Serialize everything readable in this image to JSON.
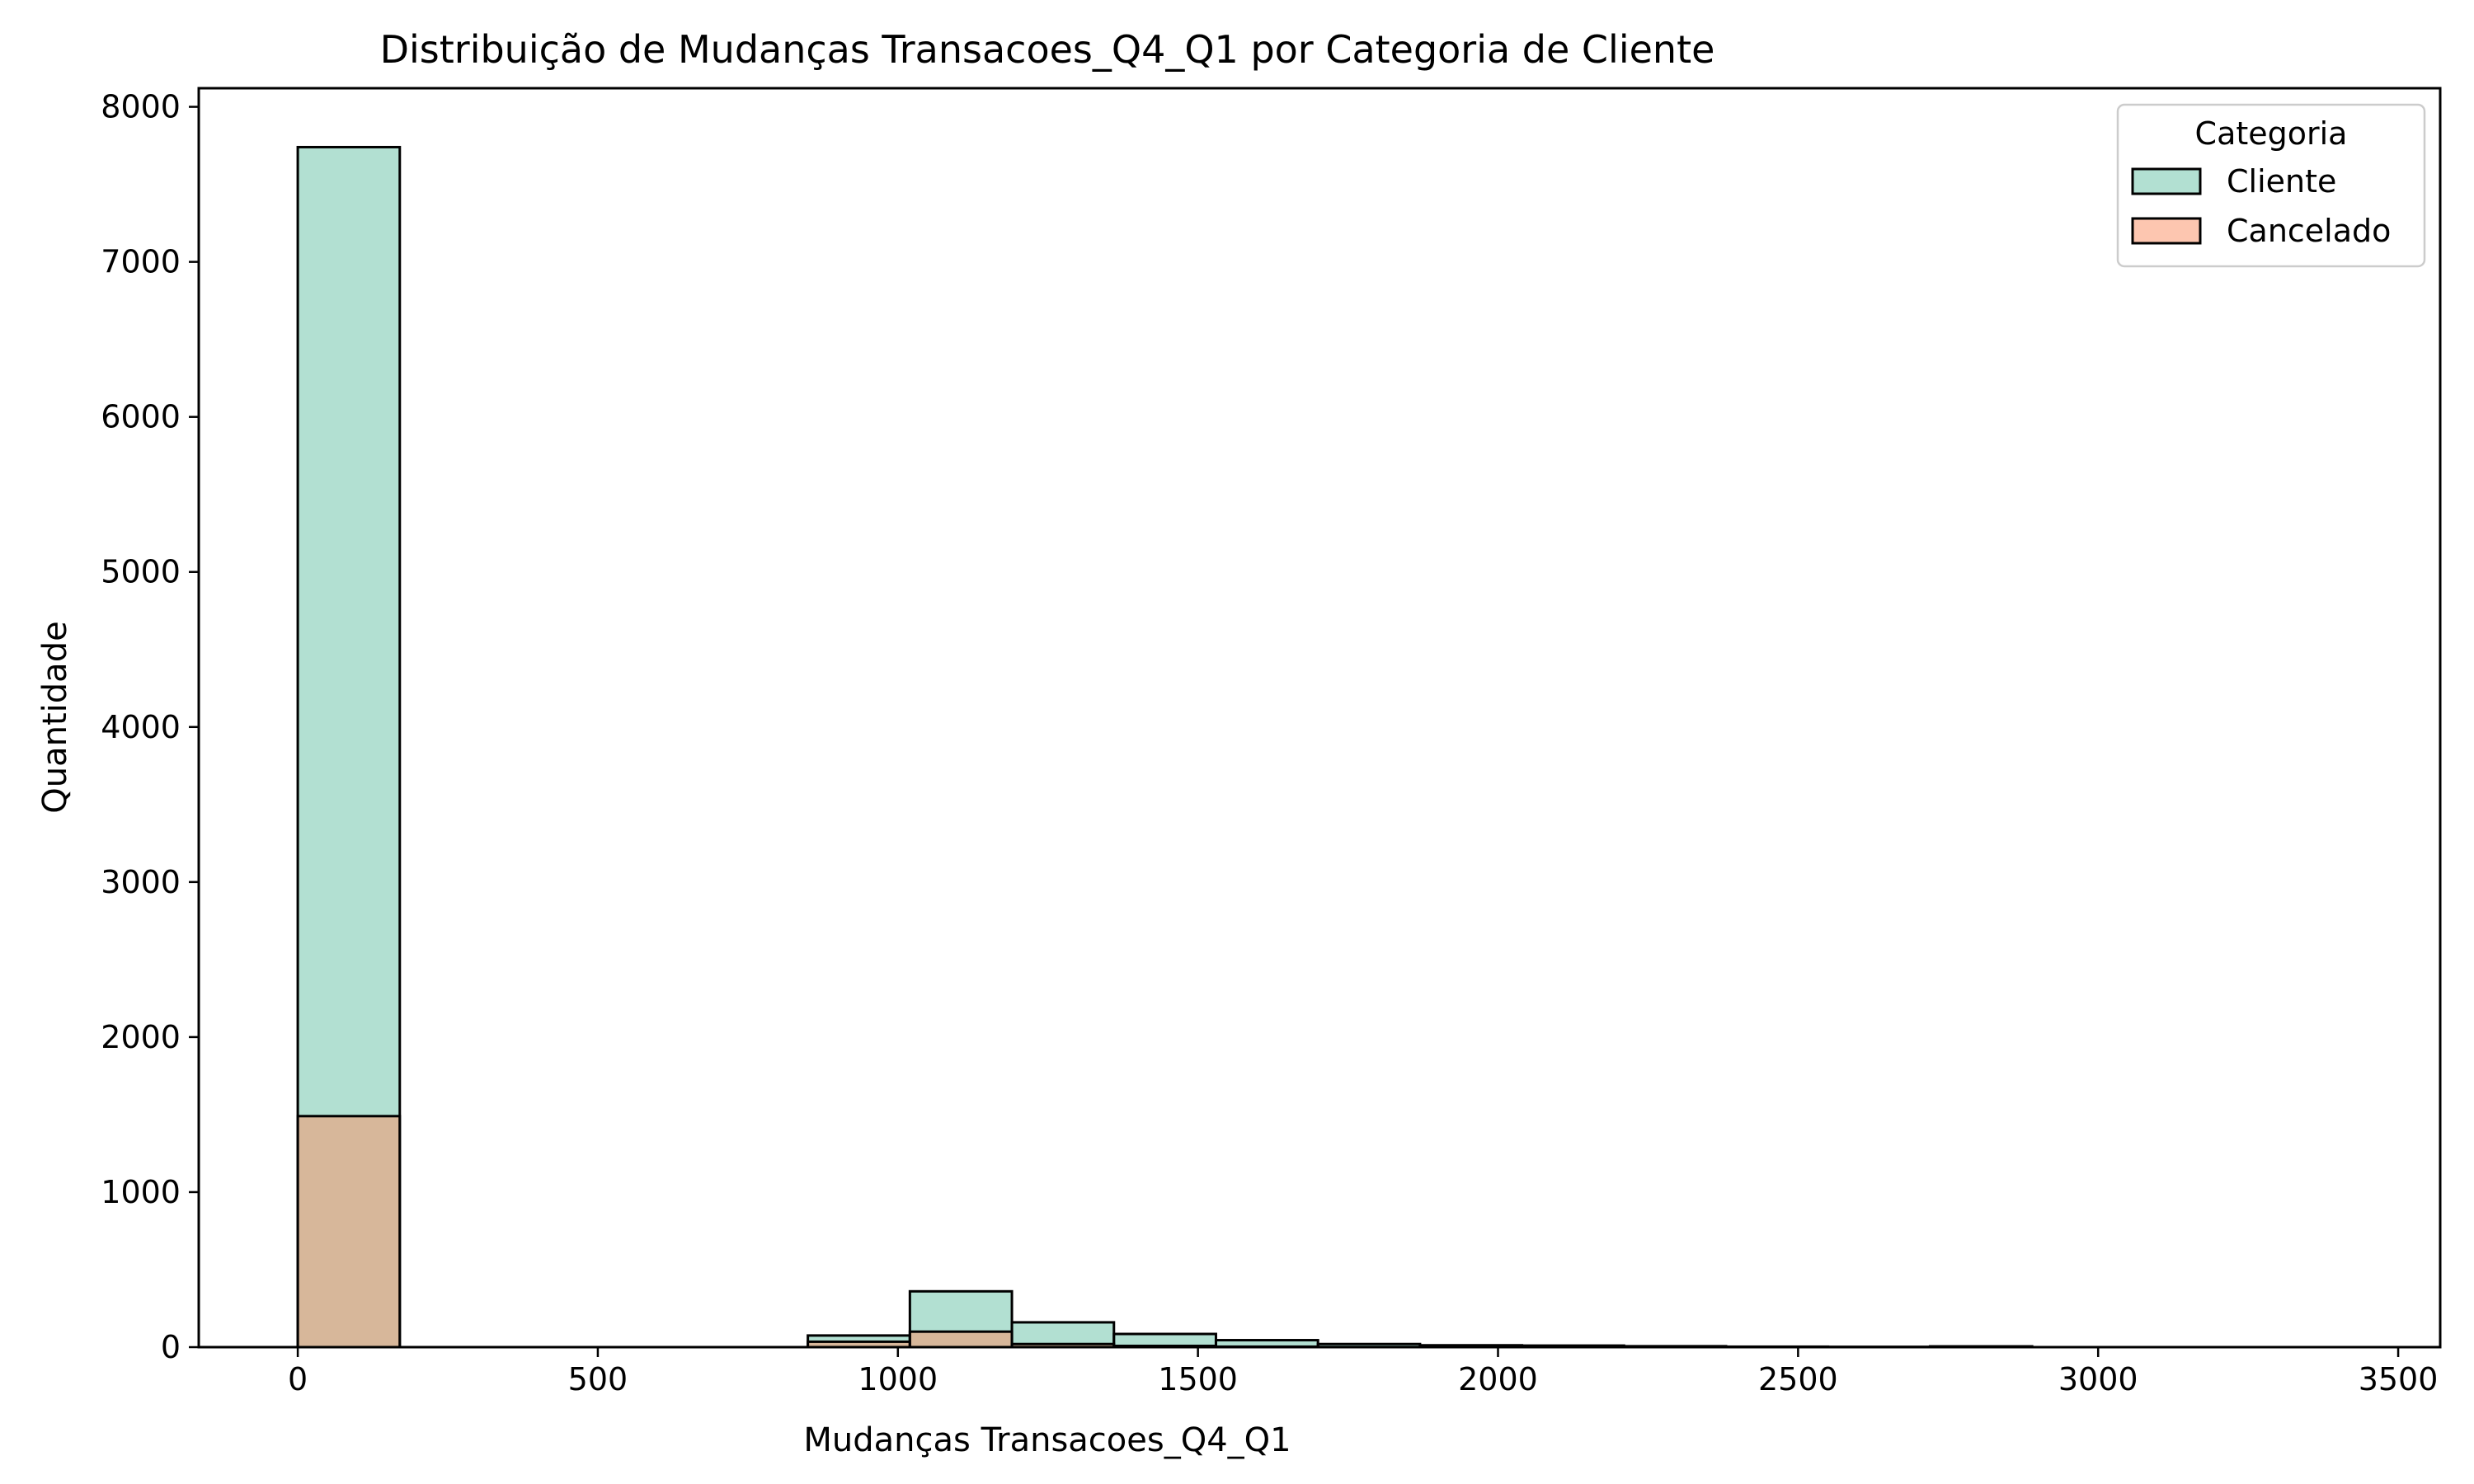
{
  "chart_data": {
    "type": "histogram",
    "title": "Distribuição de Mudanças Transacoes_Q4_Q1 por Categoria de Cliente",
    "xlabel": "Mudanças Transacoes_Q4_Q1",
    "ylabel": "Quantidade",
    "xlim": [
      -165,
      3570
    ],
    "ylim": [
      0,
      8120
    ],
    "xticks": [
      0,
      500,
      1000,
      1500,
      2000,
      2500,
      3000,
      3500
    ],
    "yticks": [
      0,
      1000,
      2000,
      3000,
      4000,
      5000,
      6000,
      7000,
      8000
    ],
    "bin_edges": [
      0,
      170,
      340,
      510,
      680,
      850,
      1020,
      1190,
      1360,
      1530,
      1700,
      1870,
      2040,
      2210,
      2380,
      2550,
      2720,
      2890,
      3060,
      3230,
      3400
    ],
    "grid": false,
    "legend": {
      "title": "Categoria",
      "position": "top-right"
    },
    "series": [
      {
        "name": "Cliente",
        "color": "#66c2a5",
        "values": [
          7740,
          0,
          0,
          0,
          0,
          75,
          360,
          160,
          85,
          45,
          20,
          12,
          10,
          6,
          3,
          2,
          5,
          0,
          0,
          0
        ]
      },
      {
        "name": "Cancelado",
        "color": "#fc8d62",
        "values": [
          1490,
          0,
          0,
          0,
          0,
          35,
          100,
          20,
          8,
          3,
          1,
          0,
          0,
          0,
          0,
          0,
          0,
          0,
          0,
          0
        ]
      }
    ]
  }
}
